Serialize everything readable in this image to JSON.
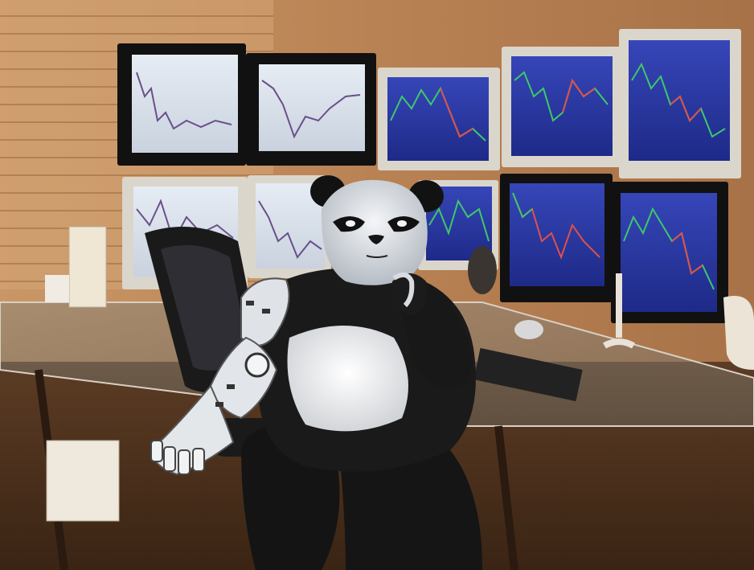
{
  "scene": {
    "wall_color": "#c08a58",
    "floor_color": "#4a3020",
    "screen_color": "#2a3ca8",
    "up_color": "#3ec86a",
    "down_color": "#e0504a"
  },
  "monitors": [
    {
      "id": "m1",
      "style": "white"
    },
    {
      "id": "m2",
      "style": "white"
    },
    {
      "id": "m3",
      "style": "blue"
    },
    {
      "id": "m4",
      "style": "blue"
    },
    {
      "id": "m5",
      "style": "blue"
    },
    {
      "id": "m6",
      "style": "white"
    },
    {
      "id": "m7",
      "style": "white"
    },
    {
      "id": "m8",
      "style": "blue"
    },
    {
      "id": "m9",
      "style": "blue"
    },
    {
      "id": "m10",
      "style": "blue"
    }
  ]
}
